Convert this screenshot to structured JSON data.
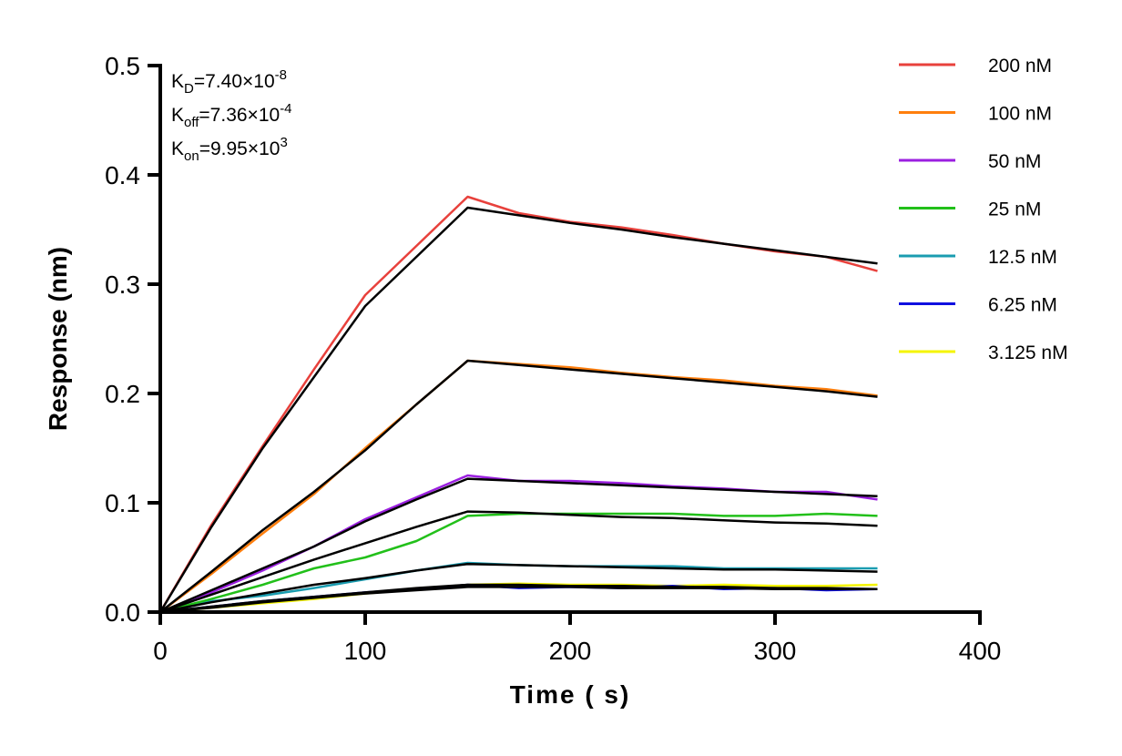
{
  "chart_data": {
    "type": "line",
    "xlabel": "Time ( s)",
    "ylabel": "Response (nm)",
    "xlim": [
      0,
      400
    ],
    "ylim": [
      0,
      0.5
    ],
    "xticks": [
      0,
      100,
      200,
      300,
      400
    ],
    "yticks": [
      0.0,
      0.1,
      0.2,
      0.3,
      0.4,
      0.5
    ],
    "ytick_labels": [
      "0.0",
      "0.1",
      "0.2",
      "0.3",
      "0.4",
      "0.5"
    ],
    "grid": false,
    "legend_placement": "top-right",
    "fit_color": "#000000",
    "annotations": [
      {
        "base": "K",
        "sub": "D",
        "text": "=7.40×10",
        "sup": "-8"
      },
      {
        "base": "K",
        "sub": "off",
        "text": "=7.36×10",
        "sup": "-4"
      },
      {
        "base": "K",
        "sub": "on",
        "text": "=9.95×10",
        "sup": "3"
      }
    ],
    "x": [
      0,
      25,
      50,
      75,
      100,
      125,
      150,
      175,
      200,
      225,
      250,
      275,
      300,
      325,
      350
    ],
    "series": [
      {
        "name": "200 nM",
        "color": "#e8413c",
        "measured": [
          0,
          0.08,
          0.152,
          0.222,
          0.29,
          0.335,
          0.38,
          0.365,
          0.357,
          0.352,
          0.345,
          0.337,
          0.33,
          0.325,
          0.312
        ],
        "fit": [
          0,
          0.078,
          0.15,
          0.215,
          0.28,
          0.325,
          0.37,
          0.363,
          0.356,
          0.35,
          0.343,
          0.337,
          0.331,
          0.325,
          0.319
        ]
      },
      {
        "name": "100 nM",
        "color": "#ff7f0e",
        "measured": [
          0,
          0.035,
          0.072,
          0.108,
          0.15,
          0.19,
          0.23,
          0.227,
          0.224,
          0.219,
          0.215,
          0.212,
          0.207,
          0.204,
          0.198
        ],
        "fit": [
          0,
          0.037,
          0.075,
          0.11,
          0.148,
          0.19,
          0.23,
          0.226,
          0.222,
          0.218,
          0.214,
          0.21,
          0.206,
          0.202,
          0.197
        ]
      },
      {
        "name": "50 nM",
        "color": "#9b1fe0",
        "measured": [
          0,
          0.018,
          0.038,
          0.06,
          0.085,
          0.105,
          0.125,
          0.12,
          0.12,
          0.118,
          0.115,
          0.113,
          0.11,
          0.11,
          0.103
        ],
        "fit": [
          0,
          0.02,
          0.04,
          0.06,
          0.083,
          0.103,
          0.122,
          0.12,
          0.118,
          0.116,
          0.114,
          0.112,
          0.11,
          0.108,
          0.106
        ]
      },
      {
        "name": "25 nM",
        "color": "#22c01a",
        "measured": [
          0,
          0.012,
          0.025,
          0.04,
          0.05,
          0.065,
          0.088,
          0.09,
          0.09,
          0.09,
          0.09,
          0.088,
          0.088,
          0.09,
          0.088
        ],
        "fit": [
          0,
          0.016,
          0.032,
          0.048,
          0.063,
          0.078,
          0.092,
          0.091,
          0.089,
          0.087,
          0.086,
          0.084,
          0.082,
          0.081,
          0.079
        ]
      },
      {
        "name": "12.5 nM",
        "color": "#1a9cb0",
        "measured": [
          0,
          0.01,
          0.015,
          0.022,
          0.03,
          0.038,
          0.045,
          0.043,
          0.042,
          0.042,
          0.042,
          0.04,
          0.04,
          0.04,
          0.04
        ],
        "fit": [
          0,
          0.009,
          0.017,
          0.025,
          0.031,
          0.038,
          0.044,
          0.043,
          0.042,
          0.041,
          0.04,
          0.039,
          0.039,
          0.038,
          0.037
        ]
      },
      {
        "name": "6.25 nM",
        "color": "#1010e0",
        "measured": [
          0,
          0.005,
          0.01,
          0.014,
          0.018,
          0.021,
          0.025,
          0.022,
          0.023,
          0.022,
          0.024,
          0.021,
          0.022,
          0.02,
          0.021
        ],
        "fit": [
          0,
          0.005,
          0.01,
          0.014,
          0.018,
          0.022,
          0.025,
          0.025,
          0.024,
          0.024,
          0.023,
          0.023,
          0.022,
          0.022,
          0.021
        ]
      },
      {
        "name": "3.125 nM",
        "color": "#f5f500",
        "measured": [
          0,
          0.004,
          0.008,
          0.012,
          0.017,
          0.021,
          0.025,
          0.026,
          0.025,
          0.025,
          0.024,
          0.025,
          0.024,
          0.024,
          0.025
        ],
        "fit": [
          0,
          0.004,
          0.009,
          0.013,
          0.017,
          0.02,
          0.023,
          0.023,
          0.023,
          0.022,
          0.022,
          0.022,
          0.021,
          0.021,
          0.021
        ]
      }
    ]
  }
}
